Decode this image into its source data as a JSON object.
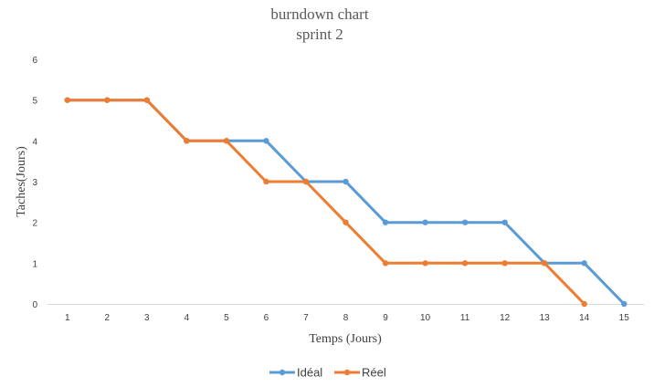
{
  "chart_data": {
    "type": "line",
    "title": "burndown chart",
    "subtitle": "sprint 2",
    "xlabel": "Temps (Jours)",
    "ylabel": "Taches(Jours)",
    "categories": [
      "1",
      "2",
      "3",
      "4",
      "5",
      "6",
      "7",
      "8",
      "9",
      "10",
      "11",
      "12",
      "13",
      "14",
      "15"
    ],
    "ylim": [
      0,
      6
    ],
    "yticks": [
      0,
      1,
      2,
      3,
      4,
      5,
      6
    ],
    "grid": false,
    "legend_position": "bottom",
    "series": [
      {
        "name": "Idéal",
        "color": "#5B9BD5",
        "values": [
          5,
          5,
          5,
          4,
          4,
          4,
          3,
          3,
          2,
          2,
          2,
          2,
          1,
          1,
          0
        ]
      },
      {
        "name": "Réel",
        "color": "#ED7D31",
        "values": [
          5,
          5,
          5,
          4,
          4,
          3,
          3,
          2,
          1,
          1,
          1,
          1,
          1,
          0,
          null
        ]
      }
    ]
  }
}
